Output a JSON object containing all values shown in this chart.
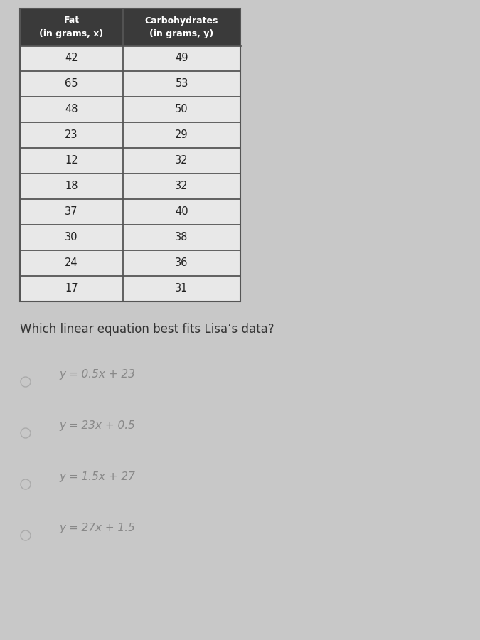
{
  "col1_header_line1": "Fat",
  "col1_header_line2": "(in grams, x)",
  "col2_header_line1": "Carbohydrates",
  "col2_header_line2": "(in grams, y)",
  "fat": [
    42,
    65,
    48,
    23,
    12,
    18,
    37,
    30,
    24,
    17
  ],
  "carbs": [
    49,
    53,
    50,
    29,
    32,
    32,
    40,
    38,
    36,
    31
  ],
  "question": "Which linear equation best fits Lisa’s data?",
  "options": [
    "y = 0.5x + 23",
    "y = 23x + 0.5",
    "y = 1.5x + 27",
    "y = 27x + 1.5"
  ],
  "background_color": "#c8c8c8",
  "table_bg": "#e8e8e8",
  "header_bg": "#3a3a3a",
  "header_text_color": "#ffffff",
  "border_color": "#555555",
  "text_color": "#222222",
  "option_text_color": "#888888",
  "question_color": "#333333"
}
